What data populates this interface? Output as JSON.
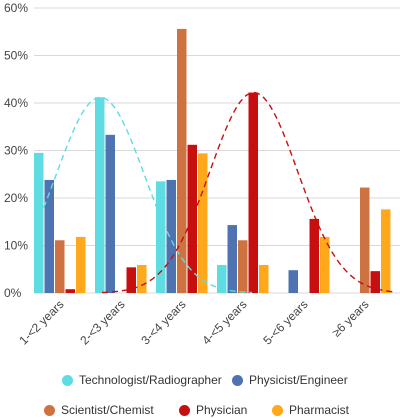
{
  "chart_data": {
    "type": "bar",
    "title": "",
    "xlabel": "",
    "ylabel": "",
    "ylim": [
      0,
      60
    ],
    "yticks": [
      0,
      10,
      20,
      30,
      40,
      50,
      60
    ],
    "ytick_labels": [
      "0%",
      "10%",
      "20%",
      "30%",
      "40%",
      "50%",
      "60%"
    ],
    "grid": true,
    "legend_position": "bottom",
    "categories": [
      "1-<2 years",
      "2-<3 years",
      "3-<4 years",
      "4-<5 years",
      "5-<6 years",
      "≥6 years"
    ],
    "series": [
      {
        "name": "Technologist/Radiographer",
        "color": "#5fdce2",
        "values": [
          29.5,
          41.2,
          23.5,
          5.9,
          0,
          0
        ]
      },
      {
        "name": "Physicist/Engineer",
        "color": "#4e73b0",
        "values": [
          23.8,
          33.3,
          23.8,
          14.3,
          4.8,
          0
        ]
      },
      {
        "name": "Scientist/Chemist",
        "color": "#cf7242",
        "values": [
          11.1,
          0,
          55.6,
          11.1,
          0,
          22.2
        ]
      },
      {
        "name": "Physician",
        "color": "#c80f10",
        "values": [
          0.8,
          5.4,
          31.2,
          42.2,
          15.6,
          4.6
        ]
      },
      {
        "name": "Pharmacist",
        "color": "#ffa81c",
        "values": [
          11.8,
          5.9,
          29.4,
          5.9,
          11.8,
          17.6
        ]
      }
    ],
    "trendlines": [
      {
        "series": "Technologist/Radiographer",
        "style": "dashed",
        "color": "#5fdce2"
      },
      {
        "series": "Physician",
        "style": "dashed",
        "color": "#c80f10"
      }
    ]
  },
  "legend": {
    "items": [
      {
        "label": "Technologist/Radiographer",
        "color": "#5fdce2"
      },
      {
        "label": "Physicist/Engineer",
        "color": "#4e73b0"
      },
      {
        "label": "Scientist/Chemist",
        "color": "#cf7242"
      },
      {
        "label": "Physician",
        "color": "#c80f10"
      },
      {
        "label": "Pharmacist",
        "color": "#ffa81c"
      }
    ]
  }
}
